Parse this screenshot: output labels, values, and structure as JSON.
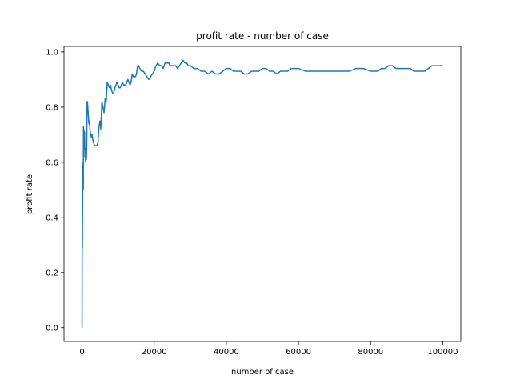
{
  "chart_data": {
    "type": "line",
    "title": "profit rate - number of case",
    "xlabel": "number of case",
    "ylabel": "profit rate",
    "xlim": [
      -5000,
      105000
    ],
    "ylim": [
      -0.05,
      1.02
    ],
    "xticks": [
      0,
      20000,
      40000,
      60000,
      80000,
      100000
    ],
    "xtick_labels": [
      "0",
      "20000",
      "40000",
      "60000",
      "80000",
      "100000"
    ],
    "yticks": [
      0.0,
      0.2,
      0.4,
      0.6,
      0.8,
      1.0
    ],
    "ytick_labels": [
      "0.0",
      "0.2",
      "0.4",
      "0.6",
      "0.8",
      "1.0"
    ],
    "grid": false,
    "colors": {
      "series": "#1f77b4"
    },
    "series": [
      {
        "x": [
          0,
          50,
          100,
          150,
          200,
          250,
          300,
          350,
          400,
          450,
          500,
          550,
          600,
          700,
          800,
          900,
          1000,
          1100,
          1200,
          1300,
          1400,
          1500,
          1600,
          1700,
          1800,
          1900,
          2000,
          2200,
          2400,
          2600,
          2800,
          3000,
          3200,
          3500,
          3800,
          4100,
          4400,
          4700,
          5000,
          5200,
          5500,
          5800,
          6100,
          6400,
          6700,
          7000,
          7300,
          7600,
          7900,
          8200,
          8500,
          8800,
          9100,
          9400,
          9700,
          10000,
          10300,
          10600,
          10900,
          11200,
          11500,
          11800,
          12100,
          12400,
          12700,
          13000,
          13300,
          13600,
          13900,
          14200,
          14500,
          14800,
          15100,
          15400,
          15700,
          16000,
          16500,
          17000,
          17500,
          18000,
          18500,
          19000,
          19500,
          20000,
          20500,
          21000,
          21500,
          22000,
          22500,
          23000,
          23500,
          24000,
          24500,
          25000,
          25500,
          26000,
          26500,
          27000,
          27500,
          28000,
          28500,
          29000,
          29500,
          30000,
          31000,
          32000,
          33000,
          34000,
          35000,
          36000,
          37000,
          38000,
          39000,
          40000,
          41000,
          42000,
          43000,
          44000,
          45000,
          46000,
          47000,
          48000,
          49000,
          50000,
          51000,
          52000,
          53000,
          54000,
          55000,
          56000,
          57000,
          58000,
          59000,
          60000,
          62000,
          64000,
          66000,
          68000,
          70000,
          72000,
          74000,
          76000,
          78000,
          80000,
          81000,
          82000,
          83000,
          84000,
          85000,
          86000,
          87000,
          88000,
          89000,
          90000,
          91000,
          92000,
          93000,
          94000,
          95000,
          96000,
          97000,
          98000,
          99000,
          100000
        ],
        "values": [
          0.0,
          0.38,
          0.29,
          0.42,
          0.59,
          0.55,
          0.6,
          0.5,
          0.73,
          0.71,
          0.72,
          0.65,
          0.7,
          0.71,
          0.62,
          0.65,
          0.6,
          0.63,
          0.61,
          0.66,
          0.82,
          0.82,
          0.8,
          0.78,
          0.76,
          0.74,
          0.75,
          0.72,
          0.7,
          0.69,
          0.7,
          0.68,
          0.67,
          0.66,
          0.66,
          0.66,
          0.67,
          0.73,
          0.75,
          0.72,
          0.82,
          0.8,
          0.78,
          0.83,
          0.82,
          0.89,
          0.88,
          0.87,
          0.88,
          0.86,
          0.85,
          0.85,
          0.87,
          0.88,
          0.89,
          0.88,
          0.87,
          0.87,
          0.88,
          0.89,
          0.88,
          0.88,
          0.88,
          0.89,
          0.9,
          0.89,
          0.88,
          0.89,
          0.92,
          0.91,
          0.91,
          0.91,
          0.92,
          0.95,
          0.95,
          0.94,
          0.93,
          0.93,
          0.92,
          0.91,
          0.9,
          0.91,
          0.92,
          0.93,
          0.95,
          0.96,
          0.95,
          0.95,
          0.94,
          0.96,
          0.96,
          0.96,
          0.95,
          0.95,
          0.95,
          0.95,
          0.94,
          0.95,
          0.96,
          0.97,
          0.96,
          0.96,
          0.95,
          0.95,
          0.94,
          0.94,
          0.93,
          0.93,
          0.92,
          0.93,
          0.92,
          0.92,
          0.93,
          0.94,
          0.94,
          0.93,
          0.93,
          0.93,
          0.92,
          0.92,
          0.93,
          0.93,
          0.93,
          0.94,
          0.94,
          0.93,
          0.93,
          0.92,
          0.93,
          0.93,
          0.93,
          0.94,
          0.94,
          0.94,
          0.93,
          0.93,
          0.93,
          0.93,
          0.93,
          0.93,
          0.93,
          0.94,
          0.94,
          0.93,
          0.93,
          0.93,
          0.94,
          0.94,
          0.95,
          0.95,
          0.94,
          0.94,
          0.94,
          0.94,
          0.94,
          0.93,
          0.93,
          0.93,
          0.93,
          0.94,
          0.95,
          0.95,
          0.95,
          0.95
        ]
      }
    ]
  }
}
